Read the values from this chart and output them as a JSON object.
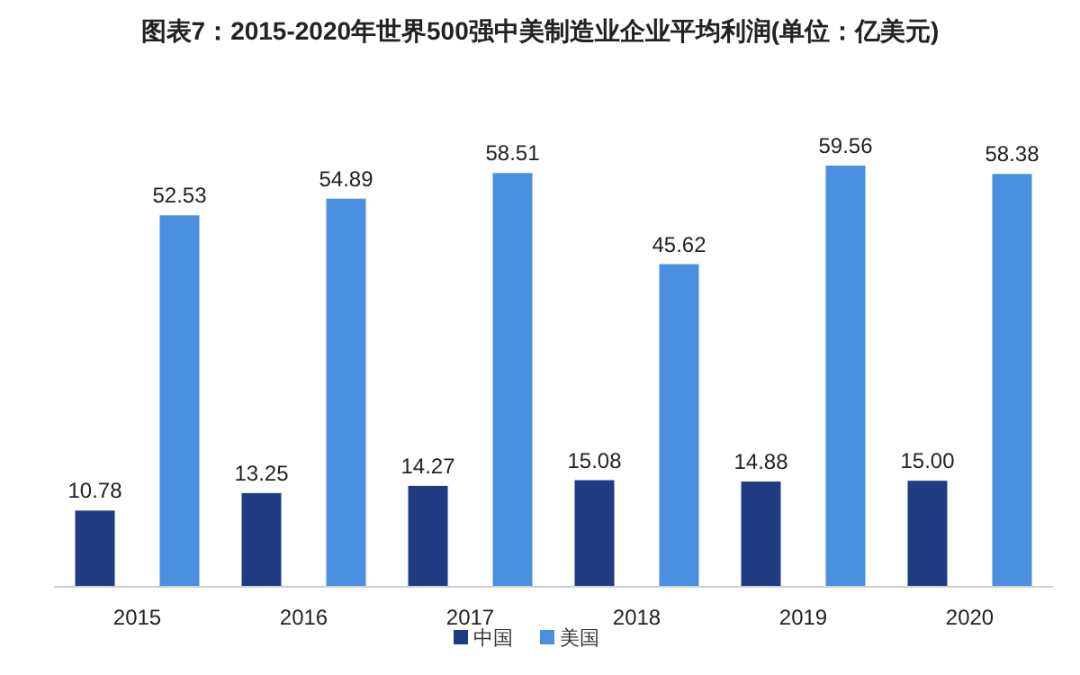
{
  "chart_data": {
    "type": "bar",
    "title": "图表7：2015-2020年世界500强中美制造业企业平均利润(单位：亿美元)",
    "categories": [
      "2015",
      "2016",
      "2017",
      "2018",
      "2019",
      "2020"
    ],
    "series": [
      {
        "name": "中国",
        "color": "#1f3b82",
        "values": [
          10.78,
          13.25,
          14.27,
          15.08,
          14.88,
          15.0
        ],
        "value_labels": [
          "10.78",
          "13.25",
          "14.27",
          "15.08",
          "14.88",
          "15.00"
        ]
      },
      {
        "name": "美国",
        "color": "#4a8fe0",
        "values": [
          52.53,
          54.89,
          58.51,
          45.62,
          59.56,
          58.38
        ],
        "value_labels": [
          "52.53",
          "54.89",
          "58.51",
          "45.62",
          "59.56",
          "58.38"
        ]
      }
    ],
    "legend": "bottom"
  }
}
